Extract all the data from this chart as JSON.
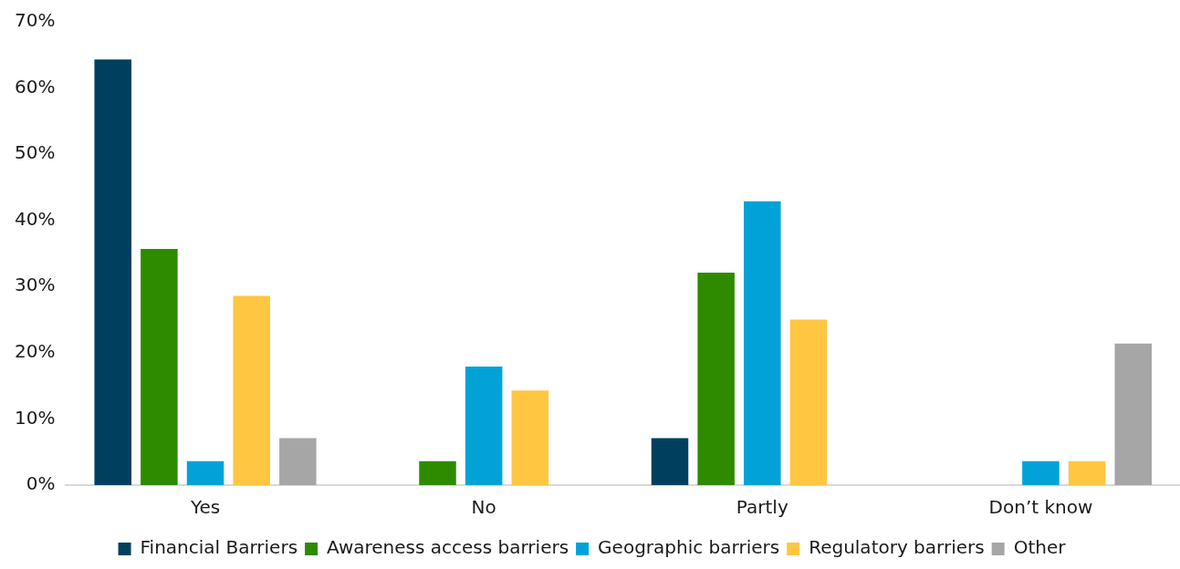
{
  "chart_data": {
    "type": "bar",
    "categories": [
      "Yes",
      "No",
      "Partly",
      "Don’t know"
    ],
    "series": [
      {
        "name": "Financial Barriers",
        "color": "#00405f",
        "values": [
          64.3,
          0,
          7.1,
          0
        ]
      },
      {
        "name": "Awareness access barriers",
        "color": "#2e8b00",
        "values": [
          35.7,
          3.6,
          32.1,
          0
        ]
      },
      {
        "name": "Geographic barriers",
        "color": "#00a2d8",
        "values": [
          3.6,
          17.9,
          42.9,
          3.6
        ]
      },
      {
        "name": "Regulatory barriers",
        "color": "#ffc642",
        "values": [
          28.6,
          14.3,
          25.0,
          3.6
        ]
      },
      {
        "name": "Other",
        "color": "#a6a6a6",
        "values": [
          7.1,
          0,
          0,
          21.4
        ]
      }
    ],
    "ylim": [
      0,
      70
    ],
    "yticks": [
      {
        "value": 0,
        "label": "0%"
      },
      {
        "value": 10,
        "label": "10%"
      },
      {
        "value": 20,
        "label": "20%"
      },
      {
        "value": 30,
        "label": "30%"
      },
      {
        "value": 40,
        "label": "40%"
      },
      {
        "value": 50,
        "label": "50%"
      },
      {
        "value": 60,
        "label": "60%"
      },
      {
        "value": 70,
        "label": "70%"
      }
    ],
    "grid": false,
    "legend": "bottom"
  }
}
